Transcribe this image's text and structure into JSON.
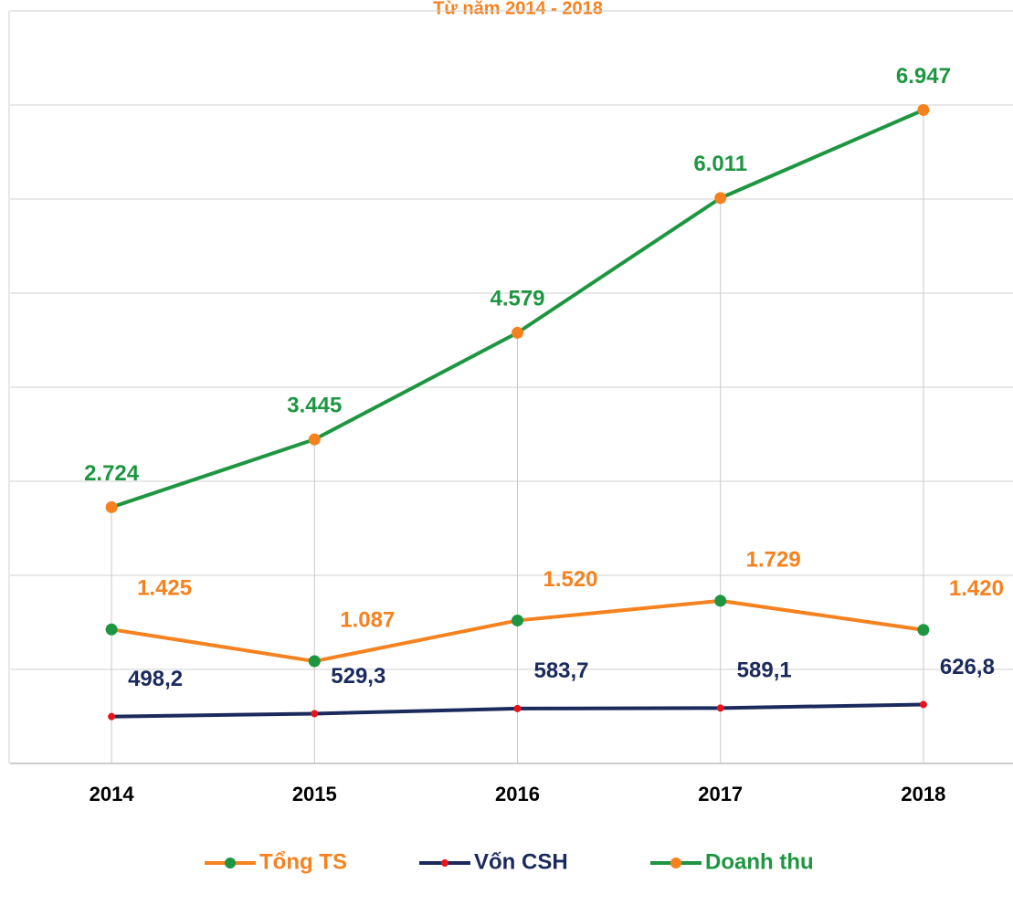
{
  "chart_data": {
    "type": "line",
    "title": "Từ năm 2014 - 2018",
    "categories": [
      "2014",
      "2015",
      "2016",
      "2017",
      "2018"
    ],
    "ylim": [
      0,
      8000
    ],
    "yticks": [
      0,
      1000,
      2000,
      3000,
      4000,
      5000,
      6000,
      7000,
      8000
    ],
    "grid": true,
    "drop_lines": true,
    "legend": "bottom",
    "series": [
      {
        "name": "Tổng TS",
        "color": "#f5821f",
        "marker_color": "#1e9641",
        "values": [
          1425,
          1087,
          1520,
          1729,
          1420
        ],
        "value_labels": [
          "1.425",
          "1.087",
          "1.520",
          "1.729",
          "1.420"
        ]
      },
      {
        "name": "Vốn CSH",
        "color": "#1b2a5c",
        "marker_color": "#e8141c",
        "values": [
          498.2,
          529.3,
          583.7,
          589.1,
          626.8
        ],
        "value_labels": [
          "498,2",
          "529,3",
          "583,7",
          "589,1",
          "626,8"
        ]
      },
      {
        "name": "Doanh thu",
        "color": "#1e9641",
        "marker_color": "#f5821f",
        "values": [
          2724,
          3445,
          4579,
          6011,
          6947
        ],
        "value_labels": [
          "2.724",
          "3.445",
          "4.579",
          "6.011",
          "6.947"
        ]
      }
    ]
  }
}
